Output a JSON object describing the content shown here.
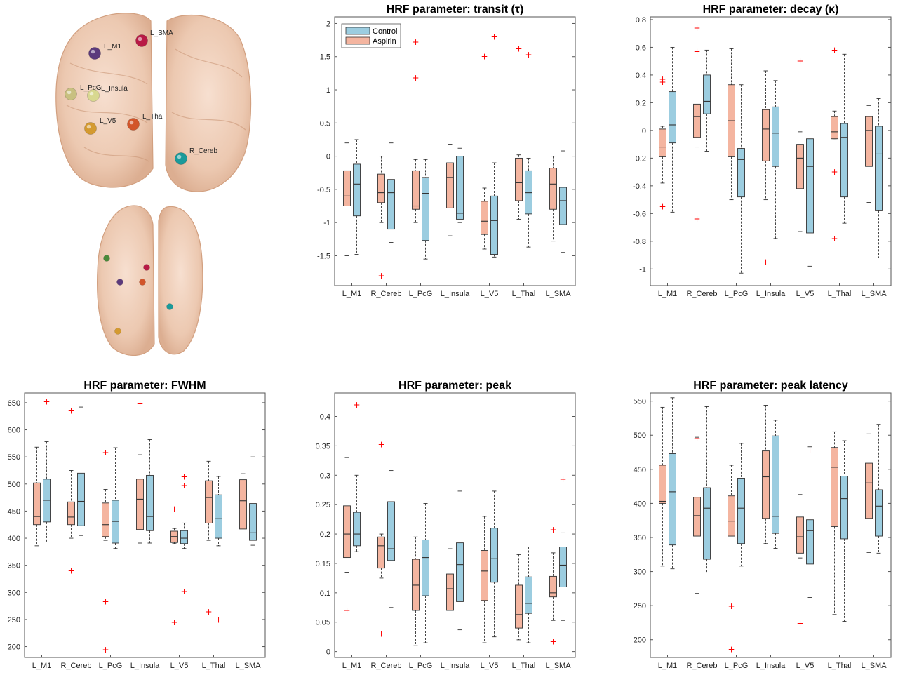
{
  "colors": {
    "control": "#9ccde0",
    "aspirin": "#f4b5a0",
    "outlier": "#ff0000",
    "box_stroke": "#333333",
    "brain_fill": "#f0c8b0"
  },
  "legend": {
    "control": "Control",
    "aspirin": "Aspirin"
  },
  "brain": {
    "labels": [
      "L_SMA",
      "L_M1",
      "L_PcG",
      "L_Insula",
      "L_V5",
      "L_Thal",
      "R_Cereb"
    ],
    "sphere_colors": [
      "#b81a45",
      "#5b3a7c",
      "#c8c080",
      "#d8d890",
      "#d49a30",
      "#d2552a",
      "#1a9a9a"
    ]
  },
  "chart_data": [
    {
      "type": "box",
      "title": "HRF parameter: transit (τ)",
      "categories": [
        "L_M1",
        "R_Cereb",
        "L_PcG",
        "L_Insula",
        "L_V5",
        "L_Thal",
        "L_SMA"
      ],
      "ylim": [
        -1.95,
        2.1
      ],
      "yticks": [
        -1.5,
        -1,
        -0.5,
        0,
        0.5,
        1,
        1.5,
        2
      ],
      "ytick_labels": [
        "-1.5",
        "-1",
        "-0.5",
        "0",
        "0.5",
        "1",
        "1.5",
        "2"
      ],
      "legend": "top-left",
      "series": [
        {
          "name": "Aspirin",
          "boxes": [
            {
              "min": -1.5,
              "q1": -0.75,
              "median": -0.6,
              "q3": -0.22,
              "max": 0.2,
              "outliers": []
            },
            {
              "min": -1.0,
              "q1": -0.7,
              "median": -0.55,
              "q3": -0.27,
              "max": 0.0,
              "outliers": [
                -1.8
              ]
            },
            {
              "min": -1.0,
              "q1": -0.8,
              "median": -0.75,
              "q3": -0.22,
              "max": -0.05,
              "outliers": [
                1.72,
                1.18
              ]
            },
            {
              "min": -1.2,
              "q1": -0.78,
              "median": -0.32,
              "q3": -0.1,
              "max": 0.18,
              "outliers": []
            },
            {
              "min": -1.4,
              "q1": -1.18,
              "median": -0.98,
              "q3": -0.68,
              "max": -0.48,
              "outliers": [
                1.5
              ]
            },
            {
              "min": -0.95,
              "q1": -0.67,
              "median": -0.4,
              "q3": -0.03,
              "max": 0.02,
              "outliers": [
                1.62
              ]
            },
            {
              "min": -1.28,
              "q1": -0.8,
              "median": -0.42,
              "q3": -0.18,
              "max": 0.0,
              "outliers": []
            }
          ]
        },
        {
          "name": "Control",
          "boxes": [
            {
              "min": -1.48,
              "q1": -0.9,
              "median": -0.42,
              "q3": -0.12,
              "max": 0.25,
              "outliers": []
            },
            {
              "min": -1.3,
              "q1": -1.1,
              "median": -0.55,
              "q3": -0.35,
              "max": 0.2,
              "outliers": []
            },
            {
              "min": -1.55,
              "q1": -1.27,
              "median": -0.56,
              "q3": -0.32,
              "max": -0.05,
              "outliers": []
            },
            {
              "min": -1.0,
              "q1": -0.95,
              "median": -0.86,
              "q3": 0.0,
              "max": 0.12,
              "outliers": []
            },
            {
              "min": -1.52,
              "q1": -1.48,
              "median": -0.97,
              "q3": -0.6,
              "max": -0.1,
              "outliers": [
                1.8
              ]
            },
            {
              "min": -1.37,
              "q1": -0.87,
              "median": -0.55,
              "q3": -0.22,
              "max": -0.03,
              "outliers": [
                1.53
              ]
            },
            {
              "min": -1.45,
              "q1": -1.03,
              "median": -0.67,
              "q3": -0.47,
              "max": 0.08,
              "outliers": []
            }
          ]
        }
      ]
    },
    {
      "type": "box",
      "title": "HRF parameter: decay (κ)",
      "categories": [
        "L_M1",
        "R_Cereb",
        "L_PcG",
        "L_Insula",
        "L_V5",
        "L_Thal",
        "L_SMA"
      ],
      "ylim": [
        -1.12,
        0.82
      ],
      "yticks": [
        -1,
        -0.8,
        -0.6,
        -0.4,
        -0.2,
        0,
        0.2,
        0.4,
        0.6,
        0.8
      ],
      "ytick_labels": [
        "-1",
        "-0.8",
        "-0.6",
        "-0.4",
        "-0.2",
        "0",
        "0.2",
        "0.4",
        "0.6",
        "0.8"
      ],
      "legend": "none",
      "series": [
        {
          "name": "Aspirin",
          "boxes": [
            {
              "min": -0.38,
              "q1": -0.19,
              "median": -0.12,
              "q3": 0.01,
              "max": 0.03,
              "outliers": [
                0.37,
                0.35,
                -0.55
              ]
            },
            {
              "min": -0.12,
              "q1": -0.05,
              "median": 0.1,
              "q3": 0.19,
              "max": 0.22,
              "outliers": [
                0.74,
                0.57,
                -0.64
              ]
            },
            {
              "min": -0.5,
              "q1": -0.19,
              "median": 0.07,
              "q3": 0.33,
              "max": 0.59,
              "outliers": []
            },
            {
              "min": -0.5,
              "q1": -0.22,
              "median": 0.01,
              "q3": 0.15,
              "max": 0.43,
              "outliers": [
                -0.95
              ]
            },
            {
              "min": -0.73,
              "q1": -0.42,
              "median": -0.2,
              "q3": -0.1,
              "max": -0.01,
              "outliers": [
                0.5
              ]
            },
            {
              "min": -0.06,
              "q1": -0.06,
              "median": -0.01,
              "q3": 0.1,
              "max": 0.14,
              "outliers": [
                0.58,
                -0.3,
                -0.78
              ]
            },
            {
              "min": -0.52,
              "q1": -0.26,
              "median": 0.0,
              "q3": 0.1,
              "max": 0.18,
              "outliers": []
            }
          ]
        },
        {
          "name": "Control",
          "boxes": [
            {
              "min": -0.59,
              "q1": -0.09,
              "median": 0.04,
              "q3": 0.28,
              "max": 0.6,
              "outliers": []
            },
            {
              "min": -0.15,
              "q1": 0.12,
              "median": 0.21,
              "q3": 0.4,
              "max": 0.58,
              "outliers": []
            },
            {
              "min": -1.03,
              "q1": -0.48,
              "median": -0.21,
              "q3": -0.13,
              "max": 0.33,
              "outliers": []
            },
            {
              "min": -0.78,
              "q1": -0.26,
              "median": -0.02,
              "q3": 0.17,
              "max": 0.36,
              "outliers": []
            },
            {
              "min": -0.98,
              "q1": -0.74,
              "median": -0.26,
              "q3": -0.06,
              "max": 0.61,
              "outliers": []
            },
            {
              "min": -0.67,
              "q1": -0.48,
              "median": -0.05,
              "q3": 0.05,
              "max": 0.55,
              "outliers": []
            },
            {
              "min": -0.92,
              "q1": -0.58,
              "median": -0.17,
              "q3": 0.03,
              "max": 0.23,
              "outliers": []
            }
          ]
        }
      ]
    },
    {
      "type": "box",
      "title": "HRF parameter: FWHM",
      "categories": [
        "L_M1",
        "R_Cereb",
        "L_PcG",
        "L_Insula",
        "L_V5",
        "L_Thal",
        "L_SMA"
      ],
      "ylim": [
        180,
        668
      ],
      "yticks": [
        200,
        250,
        300,
        350,
        400,
        450,
        500,
        550,
        600,
        650
      ],
      "ytick_labels": [
        "200",
        "250",
        "300",
        "350",
        "400",
        "450",
        "500",
        "550",
        "600",
        "650"
      ],
      "legend": "none",
      "series": [
        {
          "name": "Aspirin",
          "boxes": [
            {
              "min": 386,
              "q1": 425,
              "median": 440,
              "q3": 502,
              "max": 568,
              "outliers": []
            },
            {
              "min": 400,
              "q1": 425,
              "median": 439,
              "q3": 467,
              "max": 525,
              "outliers": [
                635,
                340
              ]
            },
            {
              "min": 396,
              "q1": 403,
              "median": 425,
              "q3": 465,
              "max": 490,
              "outliers": [
                558,
                283,
                194
              ]
            },
            {
              "min": 391,
              "q1": 416,
              "median": 472,
              "q3": 509,
              "max": 554,
              "outliers": [
                648
              ]
            },
            {
              "min": 390,
              "q1": 392,
              "median": 403,
              "q3": 413,
              "max": 418,
              "outliers": [
                454,
                245
              ]
            },
            {
              "min": 396,
              "q1": 428,
              "median": 475,
              "q3": 506,
              "max": 542,
              "outliers": [
                264
              ]
            },
            {
              "min": 393,
              "q1": 417,
              "median": 469,
              "q3": 508,
              "max": 519,
              "outliers": []
            }
          ]
        },
        {
          "name": "Control",
          "boxes": [
            {
              "min": 393,
              "q1": 430,
              "median": 470,
              "q3": 509,
              "max": 578,
              "outliers": [
                652
              ]
            },
            {
              "min": 405,
              "q1": 423,
              "median": 468,
              "q3": 520,
              "max": 642,
              "outliers": []
            },
            {
              "min": 381,
              "q1": 391,
              "median": 431,
              "q3": 470,
              "max": 567,
              "outliers": []
            },
            {
              "min": 391,
              "q1": 414,
              "median": 440,
              "q3": 516,
              "max": 582,
              "outliers": []
            },
            {
              "min": 381,
              "q1": 390,
              "median": 400,
              "q3": 414,
              "max": 428,
              "outliers": [
                513,
                497,
                302
              ]
            },
            {
              "min": 386,
              "q1": 400,
              "median": 436,
              "q3": 480,
              "max": 514,
              "outliers": [
                249
              ]
            },
            {
              "min": 387,
              "q1": 396,
              "median": 410,
              "q3": 464,
              "max": 550,
              "outliers": []
            }
          ]
        }
      ]
    },
    {
      "type": "box",
      "title": "HRF parameter: peak",
      "categories": [
        "L_M1",
        "R_Cereb",
        "L_PcG",
        "L_Insula",
        "L_V5",
        "L_Thal",
        "L_SMA"
      ],
      "ylim": [
        -0.01,
        0.44
      ],
      "yticks": [
        0,
        0.05,
        0.1,
        0.15,
        0.2,
        0.25,
        0.3,
        0.35,
        0.4
      ],
      "ytick_labels": [
        "0",
        "0.05",
        "0.1",
        "0.15",
        "0.2",
        "0.25",
        "0.3",
        "0.35",
        "0.4"
      ],
      "legend": "none",
      "series": [
        {
          "name": "Aspirin",
          "boxes": [
            {
              "min": 0.135,
              "q1": 0.16,
              "median": 0.2,
              "q3": 0.248,
              "max": 0.33,
              "outliers": [
                0.07
              ]
            },
            {
              "min": 0.125,
              "q1": 0.142,
              "median": 0.18,
              "q3": 0.195,
              "max": 0.2,
              "outliers": [
                0.352,
                0.03
              ]
            },
            {
              "min": 0.01,
              "q1": 0.07,
              "median": 0.113,
              "q3": 0.157,
              "max": 0.195,
              "outliers": []
            },
            {
              "min": 0.03,
              "q1": 0.07,
              "median": 0.107,
              "q3": 0.132,
              "max": 0.175,
              "outliers": []
            },
            {
              "min": 0.015,
              "q1": 0.087,
              "median": 0.137,
              "q3": 0.172,
              "max": 0.23,
              "outliers": []
            },
            {
              "min": 0.02,
              "q1": 0.04,
              "median": 0.063,
              "q3": 0.113,
              "max": 0.165,
              "outliers": []
            },
            {
              "min": 0.053,
              "q1": 0.093,
              "median": 0.1,
              "q3": 0.128,
              "max": 0.168,
              "outliers": [
                0.207,
                0.017
              ]
            }
          ]
        },
        {
          "name": "Control",
          "boxes": [
            {
              "min": 0.17,
              "q1": 0.18,
              "median": 0.2,
              "q3": 0.237,
              "max": 0.3,
              "outliers": [
                0.42
              ]
            },
            {
              "min": 0.075,
              "q1": 0.155,
              "median": 0.175,
              "q3": 0.255,
              "max": 0.308,
              "outliers": []
            },
            {
              "min": 0.015,
              "q1": 0.095,
              "median": 0.16,
              "q3": 0.19,
              "max": 0.252,
              "outliers": []
            },
            {
              "min": 0.037,
              "q1": 0.085,
              "median": 0.148,
              "q3": 0.185,
              "max": 0.273,
              "outliers": []
            },
            {
              "min": 0.025,
              "q1": 0.118,
              "median": 0.158,
              "q3": 0.21,
              "max": 0.273,
              "outliers": []
            },
            {
              "min": 0.015,
              "q1": 0.065,
              "median": 0.082,
              "q3": 0.127,
              "max": 0.178,
              "outliers": []
            },
            {
              "min": 0.053,
              "q1": 0.11,
              "median": 0.147,
              "q3": 0.178,
              "max": 0.202,
              "outliers": [
                0.293
              ]
            }
          ]
        }
      ]
    },
    {
      "type": "box",
      "title": "HRF parameter: peak latency",
      "categories": [
        "L_M1",
        "R_Cereb",
        "L_PcG",
        "L_Insula",
        "L_V5",
        "L_Thal",
        "L_SMA"
      ],
      "ylim": [
        174,
        562
      ],
      "yticks": [
        200,
        250,
        300,
        350,
        400,
        450,
        500,
        550
      ],
      "ytick_labels": [
        "200",
        "250",
        "300",
        "350",
        "400",
        "450",
        "500",
        "550"
      ],
      "legend": "none",
      "series": [
        {
          "name": "Aspirin",
          "boxes": [
            {
              "min": 308,
              "q1": 400,
              "median": 403,
              "q3": 456,
              "max": 541,
              "outliers": []
            },
            {
              "min": 268,
              "q1": 352,
              "median": 382,
              "q3": 409,
              "max": 497,
              "outliers": [
                495
              ]
            },
            {
              "min": 352,
              "q1": 352,
              "median": 374,
              "q3": 411,
              "max": 456,
              "outliers": [
                249,
                186
              ]
            },
            {
              "min": 341,
              "q1": 378,
              "median": 439,
              "q3": 477,
              "max": 544,
              "outliers": []
            },
            {
              "min": 320,
              "q1": 327,
              "median": 351,
              "q3": 380,
              "max": 413,
              "outliers": [
                224
              ]
            },
            {
              "min": 237,
              "q1": 366,
              "median": 453,
              "q3": 482,
              "max": 505,
              "outliers": []
            },
            {
              "min": 328,
              "q1": 378,
              "median": 430,
              "q3": 459,
              "max": 502,
              "outliers": []
            }
          ]
        },
        {
          "name": "Control",
          "boxes": [
            {
              "min": 304,
              "q1": 339,
              "median": 417,
              "q3": 473,
              "max": 555,
              "outliers": []
            },
            {
              "min": 298,
              "q1": 318,
              "median": 393,
              "q3": 423,
              "max": 542,
              "outliers": []
            },
            {
              "min": 308,
              "q1": 341,
              "median": 393,
              "q3": 437,
              "max": 488,
              "outliers": []
            },
            {
              "min": 334,
              "q1": 356,
              "median": 381,
              "q3": 499,
              "max": 522,
              "outliers": []
            },
            {
              "min": 262,
              "q1": 311,
              "median": 360,
              "q3": 376,
              "max": 483,
              "outliers": [
                478
              ]
            },
            {
              "min": 227,
              "q1": 348,
              "median": 407,
              "q3": 440,
              "max": 492,
              "outliers": []
            },
            {
              "min": 327,
              "q1": 352,
              "median": 396,
              "q3": 420,
              "max": 516,
              "outliers": []
            }
          ]
        }
      ]
    }
  ]
}
